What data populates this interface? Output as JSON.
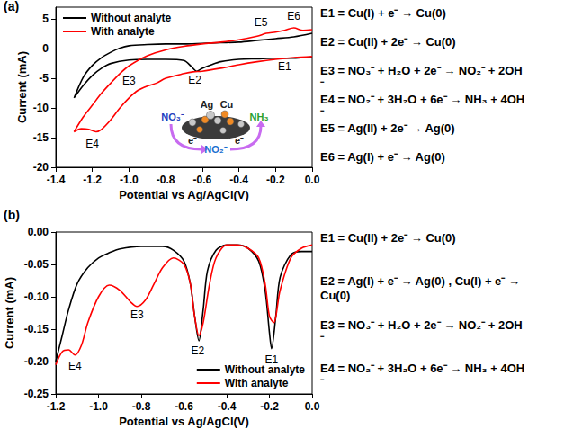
{
  "chart_data": [
    {
      "type": "line",
      "label": "(a)",
      "x_label": "Potential vs Ag/AgCl(V)",
      "y_label": "Current (mA)",
      "xlim": [
        -1.4,
        0
      ],
      "xticks": [
        -1.4,
        -1.2,
        {
          "value": -1,
          "label": "-1.0"
        },
        -0.8,
        -0.6,
        -0.4,
        -0.2,
        {
          "value": 0,
          "label": "0.0"
        }
      ],
      "ylim": [
        -20,
        7
      ],
      "yticks": [
        -20,
        -15,
        -10,
        -5,
        0,
        5
      ],
      "grid": false,
      "legend": "upper left",
      "series": [
        {
          "name": "Without analyte",
          "color": "#000000",
          "x": [
            0,
            -0.05,
            -0.1,
            -0.15,
            -0.2,
            -0.3,
            -0.4,
            -0.5,
            -0.55,
            -0.6,
            -0.63,
            -0.66,
            -0.7,
            -0.8,
            -0.9,
            -1.0,
            -1.1,
            -1.15,
            -1.2,
            -1.25,
            -1.3,
            -1.25,
            -1.2,
            -1.15,
            -1.1,
            -1.05,
            -1.0,
            -0.9,
            -0.8,
            -0.7,
            -0.6,
            -0.5,
            -0.4,
            -0.3,
            -0.2,
            -0.1,
            0
          ],
          "values": [
            -1.5,
            -1.5,
            -1.6,
            -1.6,
            -1.6,
            -1.7,
            -1.8,
            -2.2,
            -2.7,
            -3.3,
            -3.8,
            -3.0,
            -2.0,
            -1.8,
            -1.8,
            -1.9,
            -2.5,
            -3.3,
            -4.5,
            -6.2,
            -8.3,
            -4.8,
            -2.8,
            -1.5,
            -0.6,
            0.1,
            0.5,
            0.7,
            0.8,
            0.8,
            0.9,
            1.0,
            1.1,
            1.4,
            1.7,
            2.0,
            2.6
          ]
        },
        {
          "name": "With analyte",
          "color": "#ff0000",
          "x": [
            0,
            -0.1,
            -0.2,
            -0.3,
            -0.4,
            -0.5,
            -0.6,
            -0.65,
            -0.7,
            -0.8,
            -0.85,
            -0.9,
            -0.95,
            -1.0,
            -1.05,
            -1.1,
            -1.15,
            -1.18,
            -1.22,
            -1.26,
            -1.3,
            -1.25,
            -1.2,
            -1.15,
            -1.1,
            -1.05,
            -1.0,
            -0.9,
            -0.8,
            -0.7,
            -0.6,
            -0.5,
            -0.4,
            -0.3,
            -0.25,
            -0.2,
            -0.15,
            -0.1,
            -0.05,
            0
          ],
          "values": [
            -1.3,
            -1.5,
            -1.8,
            -2.2,
            -2.7,
            -3.3,
            -3.8,
            -3.9,
            -4.2,
            -5.0,
            -5.8,
            -6.3,
            -7.0,
            -8.3,
            -10.0,
            -12.0,
            -13.6,
            -14.0,
            -13.6,
            -13.5,
            -14.0,
            -11.5,
            -9.5,
            -7.5,
            -5.8,
            -4.2,
            -2.9,
            -1.2,
            -0.2,
            0.4,
            0.8,
            1.1,
            1.5,
            2.1,
            2.6,
            2.8,
            3.1,
            3.5,
            3.1,
            3.2
          ]
        }
      ],
      "annotations": [
        {
          "text": "E1",
          "x": -0.15,
          "y": -3.0
        },
        {
          "text": "E2",
          "x": -0.64,
          "y": -5.3
        },
        {
          "text": "E3",
          "x": -1.0,
          "y": -5.4
        },
        {
          "text": "E4",
          "x": -1.2,
          "y": -16
        },
        {
          "text": "E5",
          "x": -0.28,
          "y": 4.4
        },
        {
          "text": "E6",
          "x": -0.1,
          "y": 5.5
        }
      ],
      "equations": [
        "E1 = Cu(I) + e⁻ → Cu(0)",
        "E2 = Cu(II) + 2e⁻ → Cu(0)",
        "E3 = NO₃⁻ + H₂O + 2e⁻ → NO₂⁻ + 2OH⁻",
        "E4 = NO₂⁻ + 3H₂O + 6e⁻ → NH₃ + 4OH⁻",
        "E5 = Ag(II) + 2e⁻ → Ag(0)",
        "E6 = Ag(I) + e⁻ → Ag(0)"
      ],
      "inset": [
        {
          "text": "Ag",
          "color": "#222222"
        },
        {
          "text": "Cu",
          "color": "#222222"
        },
        {
          "text": "NO₃⁻",
          "color": "#1f3fbf"
        },
        {
          "text": "NO₂⁻",
          "color": "#1a6fd0"
        },
        {
          "text": "NH₃",
          "color": "#2ca02c"
        },
        {
          "text": "e⁻",
          "color": "#222222"
        },
        {
          "text": "e⁻",
          "color": "#222222"
        }
      ]
    },
    {
      "type": "line",
      "label": "(b)",
      "x_label": "Potential vs Ag/AgCl(V)",
      "y_label": "Current (mA)",
      "xlim": [
        -1.2,
        0
      ],
      "xticks": [
        -1.2,
        {
          "value": -1,
          "label": "-1.0"
        },
        -0.8,
        -0.6,
        -0.4,
        -0.2,
        {
          "value": 0,
          "label": "0.0"
        }
      ],
      "ylim": [
        -0.25,
        0
      ],
      "yticks": [
        {
          "value": -0.25,
          "label": "-0.25"
        },
        {
          "value": -0.2,
          "label": "-0.20"
        },
        {
          "value": -0.15,
          "label": "-0.15"
        },
        {
          "value": -0.1,
          "label": "-0.10"
        },
        {
          "value": -0.05,
          "label": "-0.05"
        },
        {
          "value": 0,
          "label": "0.00"
        }
      ],
      "grid": false,
      "legend": "lower right",
      "series": [
        {
          "name": "Without analyte",
          "color": "#000000",
          "x": [
            -1.2,
            -1.17,
            -1.14,
            -1.1,
            -1.05,
            -1.0,
            -0.95,
            -0.9,
            -0.8,
            -0.7,
            -0.65,
            -0.6,
            -0.57,
            -0.55,
            -0.53,
            -0.51,
            -0.49,
            -0.45,
            -0.4,
            -0.35,
            -0.3,
            -0.25,
            -0.22,
            -0.2,
            -0.19,
            -0.17,
            -0.15,
            -0.1,
            -0.05,
            0
          ],
          "values": [
            -0.2,
            -0.16,
            -0.12,
            -0.08,
            -0.055,
            -0.04,
            -0.032,
            -0.026,
            -0.022,
            -0.022,
            -0.028,
            -0.045,
            -0.08,
            -0.13,
            -0.168,
            -0.12,
            -0.06,
            -0.028,
            -0.02,
            -0.02,
            -0.025,
            -0.045,
            -0.09,
            -0.155,
            -0.18,
            -0.13,
            -0.07,
            -0.035,
            -0.03,
            -0.03
          ]
        },
        {
          "name": "With analyte",
          "color": "#ff0000",
          "x": [
            -1.2,
            -1.17,
            -1.14,
            -1.11,
            -1.08,
            -1.05,
            -1.0,
            -0.95,
            -0.9,
            -0.85,
            -0.82,
            -0.78,
            -0.74,
            -0.7,
            -0.65,
            -0.6,
            -0.57,
            -0.55,
            -0.53,
            -0.51,
            -0.48,
            -0.45,
            -0.4,
            -0.35,
            -0.3,
            -0.25,
            -0.22,
            -0.2,
            -0.18,
            -0.15,
            -0.1,
            -0.05,
            0
          ],
          "values": [
            -0.205,
            -0.185,
            -0.182,
            -0.19,
            -0.175,
            -0.14,
            -0.1,
            -0.082,
            -0.09,
            -0.108,
            -0.115,
            -0.105,
            -0.08,
            -0.055,
            -0.04,
            -0.05,
            -0.08,
            -0.13,
            -0.16,
            -0.14,
            -0.08,
            -0.04,
            -0.02,
            -0.02,
            -0.025,
            -0.04,
            -0.08,
            -0.13,
            -0.14,
            -0.09,
            -0.04,
            -0.025,
            -0.02
          ]
        }
      ],
      "annotations": [
        {
          "text": "E1",
          "x": -0.19,
          "y": -0.197
        },
        {
          "text": "E2",
          "x": -0.535,
          "y": -0.183
        },
        {
          "text": "E3",
          "x": -0.82,
          "y": -0.128
        },
        {
          "text": "E4",
          "x": -1.11,
          "y": -0.207
        }
      ],
      "equations": [
        "E1 = Cu(II) + 2e⁻ → Cu(0)",
        "E2 = Ag(I) + e⁻ → Ag(0) , Cu(I) + e⁻ → Cu(0)",
        "E3 = NO₃⁻ + H₂O + 2e⁻ → NO₂⁻ + 2OH⁻",
        "E4 = NO₂⁻ + 3H₂O + 6e⁻ → NH₃ + 4OH⁻"
      ]
    }
  ]
}
